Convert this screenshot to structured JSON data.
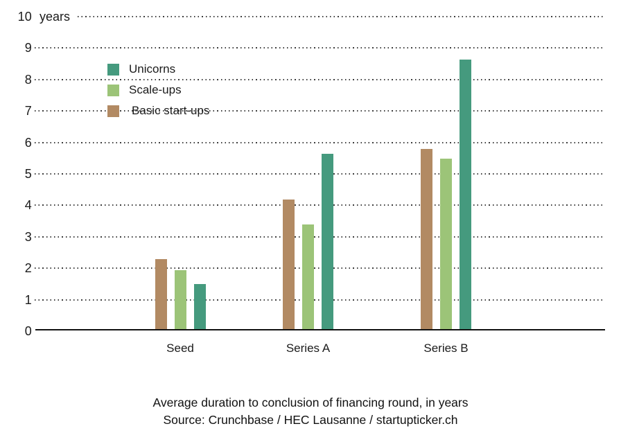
{
  "colors": {
    "background": "#ffffff",
    "text": "#1a1a1a",
    "grid_dots": "#3c3c3c",
    "axis": "#111111"
  },
  "chart_data": {
    "type": "bar",
    "title": "Average duration to conclusion of financing round, in years",
    "source": "Source: Crunchbase / HEC Lausanne / startupticker.ch",
    "categories": [
      "Seed",
      "Series A",
      "Series B"
    ],
    "series": [
      {
        "name": "Unicorns",
        "color": "#459a7e",
        "values": [
          1.45,
          5.6,
          8.6
        ]
      },
      {
        "name": "Scale-ups",
        "color": "#9cc478",
        "values": [
          1.9,
          3.35,
          5.45
        ]
      },
      {
        "name": "Basic start-ups",
        "color": "#b28a63",
        "values": [
          2.25,
          4.15,
          5.75
        ]
      }
    ],
    "bar_order_in_group": [
      "Basic start-ups",
      "Scale-ups",
      "Unicorns"
    ],
    "y_axis": {
      "min": 0,
      "max": 10,
      "tick_step": 1,
      "unit_label": "years",
      "ticks": [
        "10",
        "9",
        "8",
        "7",
        "6",
        "5",
        "4",
        "3",
        "2",
        "1",
        "0"
      ]
    },
    "grid": "dotted horizontal lines, grid on",
    "legend_position": "inside top-left"
  }
}
